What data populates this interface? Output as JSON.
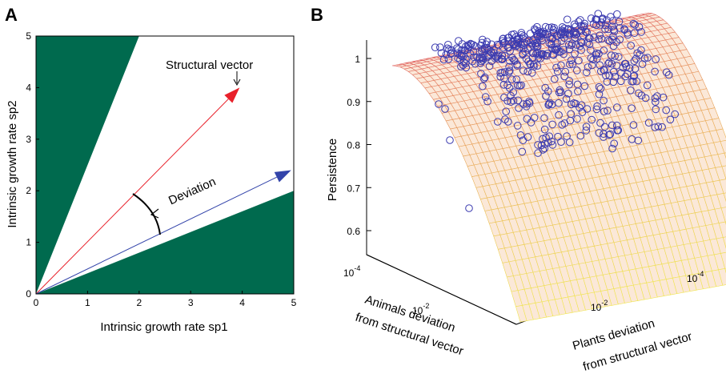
{
  "chart_data": [
    {
      "panel_label": "A",
      "type": "line",
      "xlabel": "Intrinsic growth rate sp1",
      "ylabel": "Intrinsic growth rate sp2",
      "xlim": [
        0,
        5
      ],
      "ylim": [
        0,
        5
      ],
      "xticks": [
        "0",
        "1",
        "2",
        "3",
        "4",
        "5"
      ],
      "yticks": [
        "0",
        "1",
        "2",
        "3",
        "4",
        "5"
      ],
      "feasibility_cone": {
        "upper_boundary": [
          [
            0,
            0
          ],
          [
            2,
            5
          ]
        ],
        "lower_boundary": [
          [
            0,
            0
          ],
          [
            5,
            2
          ]
        ],
        "outside_color": "#006a4e"
      },
      "series": [
        {
          "role": "structural",
          "color": "#e8202a",
          "values": [
            [
              0,
              0
            ],
            [
              3.95,
              4.0
            ]
          ]
        },
        {
          "role": "deviation",
          "color": "#3344aa",
          "values": [
            [
              0,
              0
            ],
            [
              4.95,
              2.4
            ]
          ]
        }
      ],
      "annotations": [
        {
          "text": "Structural vector",
          "at": [
            3.95,
            4.0
          ]
        },
        {
          "text": "Deviation",
          "at": [
            2.2,
            1.9
          ]
        }
      ]
    },
    {
      "panel_label": "B",
      "type": "scatter",
      "zlabel": "Persistence",
      "xlabel_lines": [
        "Animals deviation",
        "from structural vector"
      ],
      "ylabel_lines": [
        "Plants deviation",
        "from structural vector"
      ],
      "zticks": [
        "0.6",
        "0.7",
        "0.8",
        "0.9",
        "1"
      ],
      "animals_ticks": [
        "10",
        "10"
      ],
      "animals_tick_exponents": [
        "-4",
        "-2"
      ],
      "plants_ticks": [
        "10",
        "10"
      ],
      "plants_tick_exponents": [
        "-4",
        "-2"
      ],
      "zlim": [
        0.55,
        1.0
      ],
      "surface": "fitted persistence surface, red at top grading to yellow",
      "surface_colors": [
        "#e06060",
        "#f0e850"
      ],
      "marker_color": "#3b3bb0",
      "points_note": "several hundred open-circle observations concentrated near persistence 0.8-1.0"
    }
  ]
}
